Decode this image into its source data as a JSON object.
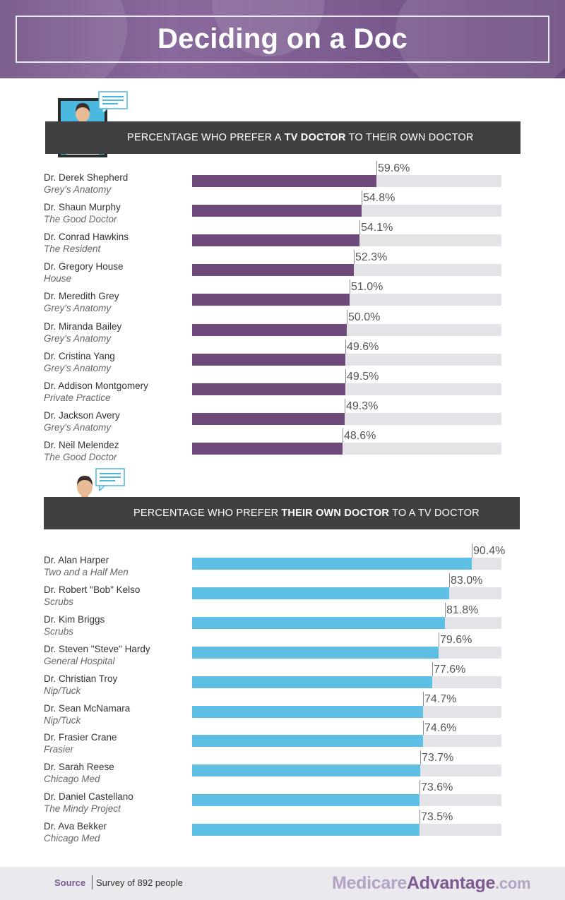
{
  "title": "Deciding on a Doc",
  "colors": {
    "header": "#7d5d90",
    "tv_bar": "#6d4a7a",
    "own_bar": "#5ebfe4",
    "track": "#e4e3e8",
    "banner": "#404040"
  },
  "chart_data": [
    {
      "type": "bar",
      "orientation": "horizontal",
      "title": "PERCENTAGE WHO PREFER A TV DOCTOR TO THEIR OWN DOCTOR",
      "title_parts": {
        "pre": "PERCENTAGE WHO PREFER A",
        "bold": "TV DOCTOR",
        "post": "TO THEIR OWN DOCTOR"
      },
      "xlim": [
        0,
        100
      ],
      "color": "#6d4a7a",
      "bars": [
        {
          "name": "Dr. Derek Shepherd",
          "show": "Grey's Anatomy",
          "value": 59.6,
          "label": "59.6%"
        },
        {
          "name": "Dr. Shaun Murphy",
          "show": "The Good Doctor",
          "value": 54.8,
          "label": "54.8%"
        },
        {
          "name": "Dr. Conrad Hawkins",
          "show": "The Resident",
          "value": 54.1,
          "label": "54.1%"
        },
        {
          "name": "Dr. Gregory House",
          "show": "House",
          "value": 52.3,
          "label": "52.3%"
        },
        {
          "name": "Dr. Meredith Grey",
          "show": "Grey's Anatomy",
          "value": 51.0,
          "label": "51.0%"
        },
        {
          "name": "Dr. Miranda Bailey",
          "show": "Grey's Anatomy",
          "value": 50.0,
          "label": "50.0%"
        },
        {
          "name": "Dr. Cristina Yang",
          "show": "Grey's Anatomy",
          "value": 49.6,
          "label": "49.6%"
        },
        {
          "name": "Dr. Addison Montgomery",
          "show": "Private Practice",
          "value": 49.5,
          "label": "49.5%"
        },
        {
          "name": "Dr. Jackson Avery",
          "show": "Grey's Anatomy",
          "value": 49.3,
          "label": "49.3%"
        },
        {
          "name": "Dr. Neil Melendez",
          "show": "The Good Doctor",
          "value": 48.6,
          "label": "48.6%"
        }
      ]
    },
    {
      "type": "bar",
      "orientation": "horizontal",
      "title": "PERCENTAGE WHO PREFER THEIR OWN DOCTOR TO A TV DOCTOR",
      "title_parts": {
        "pre": "PERCENTAGE WHO PREFER",
        "bold": "THEIR OWN DOCTOR",
        "post": "TO A TV DOCTOR"
      },
      "xlim": [
        0,
        100
      ],
      "color": "#5ebfe4",
      "bars": [
        {
          "name": "Dr. Alan Harper",
          "show": "Two and a Half Men",
          "value": 90.4,
          "label": "90.4%"
        },
        {
          "name": "Dr. Robert \"Bob\" Kelso",
          "show": "Scrubs",
          "value": 83.0,
          "label": "83.0%"
        },
        {
          "name": "Dr. Kim Briggs",
          "show": "Scrubs",
          "value": 81.8,
          "label": "81.8%"
        },
        {
          "name": "Dr. Steven \"Steve\" Hardy",
          "show": "General Hospital",
          "value": 79.6,
          "label": "79.6%"
        },
        {
          "name": "Dr. Christian Troy",
          "show": "Nip/Tuck",
          "value": 77.6,
          "label": "77.6%"
        },
        {
          "name": "Dr. Sean McNamara",
          "show": "Nip/Tuck",
          "value": 74.7,
          "label": "74.7%"
        },
        {
          "name": "Dr. Frasier Crane",
          "show": "Frasier",
          "value": 74.6,
          "label": "74.6%"
        },
        {
          "name": "Dr. Sarah Reese",
          "show": "Chicago Med",
          "value": 73.7,
          "label": "73.7%"
        },
        {
          "name": "Dr. Daniel Castellano",
          "show": "The Mindy Project",
          "value": 73.6,
          "label": "73.6%"
        },
        {
          "name": "Dr. Ava Bekker",
          "show": "Chicago Med",
          "value": 73.5,
          "label": "73.5%"
        }
      ]
    }
  ],
  "footer": {
    "source_label": "Source",
    "source_text": "Survey of 892 people",
    "brand_part1": "Medicare",
    "brand_part2": "Advantage",
    "brand_part3": ".com"
  }
}
